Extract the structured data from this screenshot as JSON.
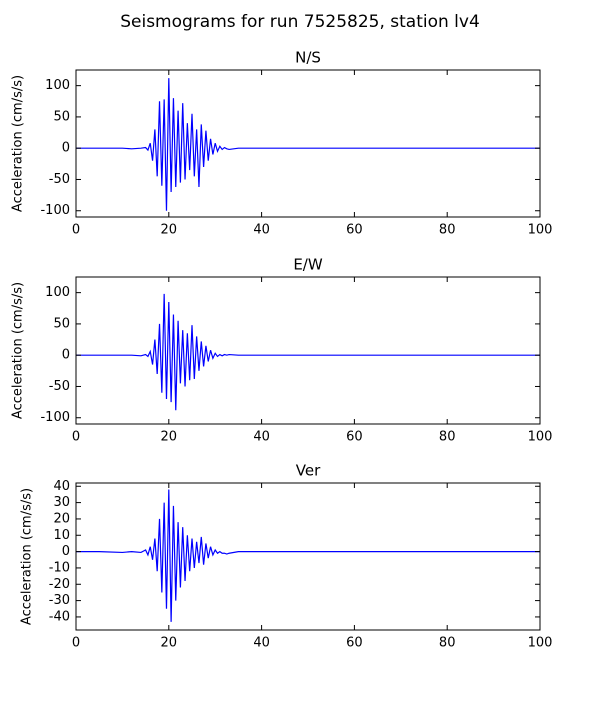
{
  "title": "Seismograms for run 7525825, station lv4",
  "chart_data": [
    {
      "type": "line",
      "title": "N/S",
      "ylabel": "Acceleration (cm/s/s)",
      "color": "#0000ff",
      "x": [
        0,
        5,
        10,
        12,
        14,
        15,
        15.5,
        16,
        16.5,
        17,
        17.5,
        18,
        18.5,
        19,
        19.5,
        20,
        20.5,
        21,
        21.5,
        22,
        22.5,
        23,
        23.5,
        24,
        24.5,
        25,
        25.5,
        26,
        26.5,
        27,
        27.5,
        28,
        28.5,
        29,
        29.5,
        30,
        30.5,
        31,
        31.5,
        32,
        32.5,
        33,
        35,
        40,
        45,
        50,
        55,
        60,
        65,
        70,
        75,
        80,
        85,
        90,
        95,
        100
      ],
      "values": [
        0,
        0,
        0,
        -1,
        0,
        1,
        -3,
        8,
        -20,
        30,
        -45,
        75,
        -60,
        78,
        -100,
        112,
        -70,
        80,
        -62,
        60,
        -55,
        72,
        -50,
        40,
        -35,
        55,
        -45,
        30,
        -62,
        38,
        -30,
        28,
        -20,
        15,
        -10,
        8,
        -5,
        3,
        -2,
        1,
        -1,
        -2,
        0,
        0,
        0,
        0,
        0,
        0,
        0,
        0,
        0,
        0,
        0,
        0,
        0,
        0
      ],
      "xlim": [
        0,
        100
      ],
      "xticks": [
        0,
        20,
        40,
        60,
        80,
        100
      ],
      "ylim": [
        -110,
        125
      ],
      "yticks": [
        -100,
        -50,
        0,
        50,
        100
      ]
    },
    {
      "type": "line",
      "title": "E/W",
      "ylabel": "Acceleration (cm/s/s)",
      "color": "#0000ff",
      "x": [
        0,
        5,
        10,
        12,
        14,
        15,
        15.5,
        16,
        16.5,
        17,
        17.5,
        18,
        18.5,
        19,
        19.5,
        20,
        20.5,
        21,
        21.5,
        22,
        22.5,
        23,
        23.5,
        24,
        24.5,
        25,
        25.5,
        26,
        26.5,
        27,
        27.5,
        28,
        28.5,
        29,
        29.5,
        30,
        30.5,
        31,
        31.5,
        32,
        32.5,
        33,
        35,
        40,
        45,
        50,
        55,
        60,
        65,
        70,
        75,
        80,
        85,
        90,
        95,
        100
      ],
      "values": [
        0,
        0,
        0,
        0,
        -1,
        1,
        -2,
        6,
        -15,
        25,
        -30,
        50,
        -60,
        98,
        -70,
        85,
        -75,
        65,
        -88,
        55,
        -45,
        40,
        -50,
        35,
        -40,
        48,
        -38,
        30,
        -25,
        22,
        -18,
        15,
        -10,
        8,
        -5,
        3,
        -2,
        1,
        -1,
        1,
        0,
        1,
        0,
        0,
        0,
        0,
        0,
        0,
        0,
        0,
        0,
        0,
        0,
        0,
        0,
        0
      ],
      "xlim": [
        0,
        100
      ],
      "xticks": [
        0,
        20,
        40,
        60,
        80,
        100
      ],
      "ylim": [
        -110,
        125
      ],
      "yticks": [
        -100,
        -50,
        0,
        50,
        100
      ]
    },
    {
      "type": "line",
      "title": "Ver",
      "ylabel": "Acceleration (cm/s/s)",
      "color": "#0000ff",
      "x": [
        0,
        5,
        10,
        12,
        14,
        15,
        15.5,
        16,
        16.5,
        17,
        17.5,
        18,
        18.5,
        19,
        19.5,
        20,
        20.5,
        21,
        21.5,
        22,
        22.5,
        23,
        23.5,
        24,
        24.5,
        25,
        25.5,
        26,
        26.5,
        27,
        27.5,
        28,
        28.5,
        29,
        29.5,
        30,
        30.5,
        31,
        31.5,
        32,
        32.5,
        33,
        35,
        40,
        45,
        50,
        55,
        60,
        65,
        70,
        75,
        80,
        85,
        90,
        95,
        100
      ],
      "values": [
        0,
        0,
        -0.5,
        0,
        -0.5,
        1,
        -2,
        3,
        -5,
        8,
        -12,
        20,
        -25,
        30,
        -35,
        38,
        -43,
        28,
        -30,
        18,
        -22,
        15,
        -18,
        10,
        -12,
        8,
        -10,
        6,
        -7,
        9,
        -8,
        5,
        -4,
        3,
        -2,
        1,
        -1,
        0,
        -1,
        -1,
        -1.5,
        -1,
        0,
        0,
        0,
        0,
        0,
        0,
        0,
        0,
        0,
        0,
        0,
        0,
        0,
        0
      ],
      "xlim": [
        0,
        100
      ],
      "xticks": [
        0,
        20,
        40,
        60,
        80,
        100
      ],
      "ylim": [
        -48,
        42
      ],
      "yticks": [
        -40,
        -30,
        -20,
        -10,
        0,
        10,
        20,
        30,
        40
      ]
    }
  ]
}
